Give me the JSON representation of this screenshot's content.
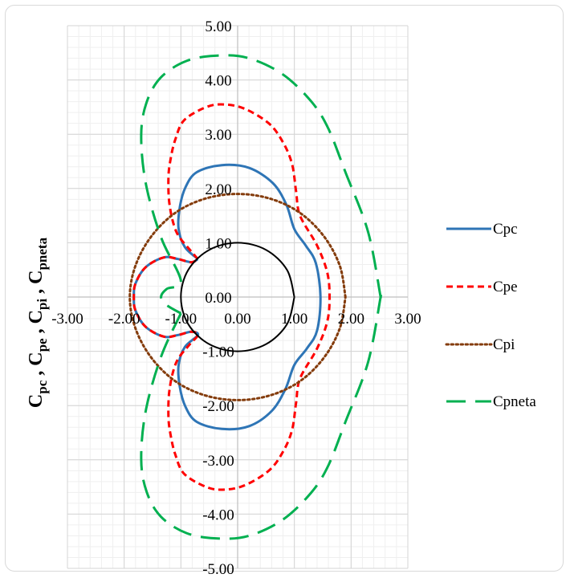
{
  "chart_data": {
    "type": "line",
    "title": "",
    "xlabel": "",
    "ylabel": "C_pc , C_pe , C_pi , C_pneta",
    "ylabel_parts": [
      {
        "base": "C",
        "sub": "pc",
        "sep": " , "
      },
      {
        "base": "C",
        "sub": "pe",
        "sep": " , "
      },
      {
        "base": "C",
        "sub": "pi",
        "sep": " , "
      },
      {
        "base": "C",
        "sub": "pneta",
        "sep": ""
      }
    ],
    "xlim": [
      -3,
      3
    ],
    "ylim": [
      -5,
      5
    ],
    "x_major_step": 1,
    "y_major_step": 1,
    "minor_divisions": 5,
    "x_tick_labels": [
      "-3.00",
      "-2.00",
      "-1.00",
      "0.00",
      "1.00",
      "2.00",
      "3.00"
    ],
    "y_tick_labels": [
      "-5.00",
      "-4.00",
      "-3.00",
      "-2.00",
      "-1.00",
      "0.00",
      "1.00",
      "2.00",
      "3.00",
      "4.00",
      "5.00"
    ],
    "grid": true,
    "legend_position": "right",
    "legend": [
      "Cpc",
      "Cpe",
      "Cpi",
      "Cpneta"
    ],
    "series": [
      {
        "name": "Cpc",
        "color": "#2e75b6",
        "dash": "solid",
        "x": [
          -0.7,
          -0.93,
          -1.04,
          -1.02,
          -0.92,
          -0.72,
          -0.28,
          0.2,
          0.62,
          0.86,
          1.0,
          1.2,
          1.38,
          1.46,
          1.4,
          1.22,
          1.0,
          0.84,
          0.6,
          0.2,
          -0.28,
          -0.72,
          -0.92,
          -1.02,
          -1.04,
          -0.93,
          -0.7,
          -0.82,
          -1.05,
          -1.3,
          -1.62,
          -1.8,
          -1.83,
          -1.8,
          -1.62,
          -1.3,
          -1.05,
          -0.82,
          -0.7
        ],
        "y": [
          0.7,
          0.92,
          1.25,
          1.65,
          2.02,
          2.3,
          2.43,
          2.38,
          2.1,
          1.7,
          1.25,
          0.95,
          0.62,
          0.0,
          -0.62,
          -0.95,
          -1.25,
          -1.7,
          -2.1,
          -2.38,
          -2.43,
          -2.3,
          -2.02,
          -1.65,
          -1.25,
          -0.92,
          -0.7,
          -0.64,
          -0.7,
          -0.73,
          -0.55,
          -0.25,
          0.0,
          0.25,
          0.55,
          0.73,
          0.7,
          0.64,
          0.7
        ]
      },
      {
        "name": "Cpe",
        "color": "#ff0000",
        "dash": "short",
        "x": [
          -0.7,
          -0.85,
          -1.08,
          -1.2,
          -1.22,
          -1.18,
          -1.1,
          -0.95,
          -0.6,
          -0.3,
          0.1,
          0.55,
          0.8,
          0.96,
          1.03,
          1.1,
          1.4,
          1.58,
          1.62,
          1.58,
          1.4,
          1.1,
          1.03,
          0.96,
          0.8,
          0.55,
          0.1,
          -0.3,
          -0.6,
          -0.95,
          -1.1,
          -1.18,
          -1.22,
          -1.2,
          -1.08,
          -0.85,
          -0.7,
          -0.82,
          -1.05,
          -1.3,
          -1.62,
          -1.8,
          -1.83,
          -1.8,
          -1.62,
          -1.3,
          -1.05,
          -0.82,
          -0.7
        ],
        "y": [
          0.7,
          0.88,
          1.2,
          1.7,
          2.2,
          2.55,
          2.9,
          3.25,
          3.48,
          3.55,
          3.48,
          3.2,
          2.85,
          2.45,
          1.95,
          1.5,
          0.95,
          0.45,
          0.0,
          -0.45,
          -0.95,
          -1.5,
          -1.95,
          -2.45,
          -2.85,
          -3.2,
          -3.48,
          -3.55,
          -3.48,
          -3.25,
          -2.9,
          -2.55,
          -2.2,
          -1.7,
          -1.2,
          -0.88,
          -0.7,
          -0.64,
          -0.7,
          -0.73,
          -0.55,
          -0.25,
          0.0,
          0.25,
          0.55,
          0.73,
          0.7,
          0.64,
          0.7
        ]
      },
      {
        "name": "Cpi",
        "color": "#843c0c",
        "dash": "dotted",
        "x": [
          1.9,
          1.8,
          1.52,
          1.1,
          0.58,
          0.0,
          -0.58,
          -1.1,
          -1.52,
          -1.8,
          -1.9,
          -1.8,
          -1.52,
          -1.1,
          -0.58,
          0.0,
          0.58,
          1.1,
          1.52,
          1.8,
          1.9
        ],
        "y": [
          0.0,
          0.58,
          1.12,
          1.55,
          1.81,
          1.9,
          1.81,
          1.55,
          1.12,
          0.58,
          0.0,
          -0.58,
          -1.12,
          -1.55,
          -1.81,
          -1.9,
          -1.81,
          -1.55,
          -1.12,
          -0.58,
          0.0
        ]
      },
      {
        "name": "Cpneta",
        "color": "#00b050",
        "dash": "long",
        "x": [
          -1.0,
          -1.35,
          -1.62,
          -1.7,
          -1.6,
          -1.35,
          -0.9,
          -0.35,
          0.2,
          0.8,
          1.3,
          1.6,
          1.9,
          2.3,
          2.52,
          2.52,
          2.3,
          1.9,
          1.6,
          1.3,
          0.8,
          0.2,
          -0.35,
          -0.9,
          -1.35,
          -1.6,
          -1.7,
          -1.62,
          -1.35,
          -1.0,
          -1.25,
          -1.35,
          -1.25,
          -1.0
        ],
        "y": [
          -0.3,
          -1.1,
          -2.1,
          -3.0,
          -3.6,
          -4.05,
          -4.35,
          -4.45,
          -4.4,
          -4.1,
          -3.6,
          -3.1,
          -2.3,
          -1.2,
          0.0,
          0.0,
          1.2,
          2.3,
          3.1,
          3.6,
          4.1,
          4.4,
          4.45,
          4.35,
          4.05,
          3.6,
          3.0,
          2.1,
          1.1,
          0.3,
          0.15,
          0.0,
          -0.15,
          -0.3
        ]
      },
      {
        "name": "",
        "color": "#000000",
        "dash": "solid",
        "x": [
          1.0,
          0.87,
          0.5,
          0.0,
          -0.5,
          -0.87,
          -1.0,
          -0.87,
          -0.5,
          0.0,
          0.5,
          0.87,
          1.0
        ],
        "y": [
          0.0,
          0.5,
          0.87,
          1.0,
          0.87,
          0.5,
          0.0,
          -0.5,
          -0.87,
          -1.0,
          -0.87,
          -0.5,
          0.0
        ]
      }
    ]
  }
}
